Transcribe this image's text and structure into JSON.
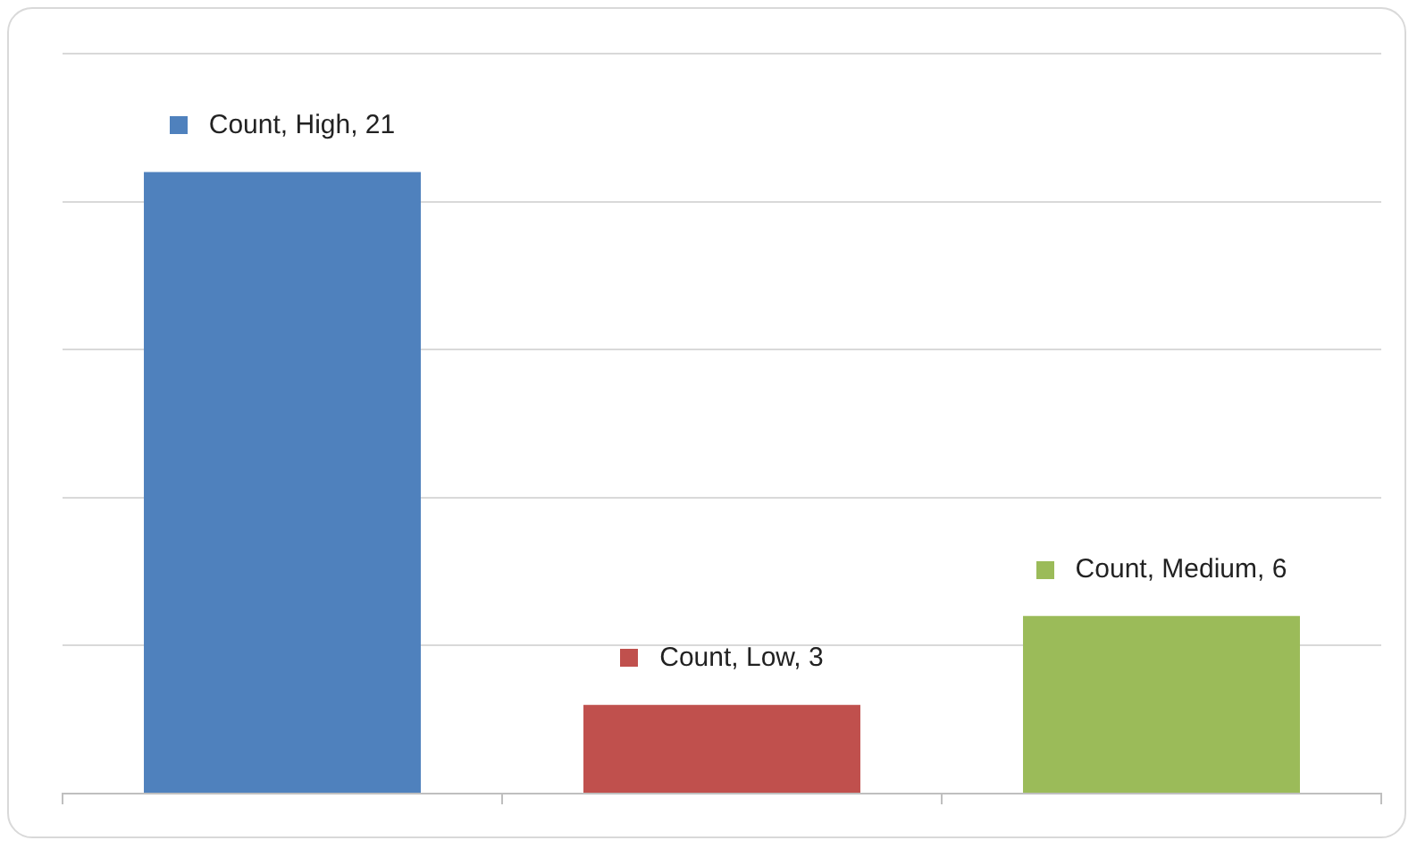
{
  "chart_data": {
    "type": "bar",
    "categories": [
      null,
      null,
      null
    ],
    "values": [
      21,
      3,
      6
    ],
    "colors": [
      "#4f81bd",
      "#c0504d",
      "#9bbb59"
    ],
    "value_labels": [
      "Count, High, 21",
      "Count, Low, 3",
      "Count, Medium, 6"
    ],
    "ylim": [
      0,
      25
    ],
    "yticks": [
      {
        "value": 0,
        "label": null
      },
      {
        "value": 5,
        "label": null
      },
      {
        "value": 10,
        "label": null
      },
      {
        "value": 15,
        "label": null
      },
      {
        "value": 20,
        "label": null
      },
      {
        "value": 25,
        "label": null
      }
    ],
    "grid": "y",
    "tick_labels": false,
    "legend": false
  }
}
